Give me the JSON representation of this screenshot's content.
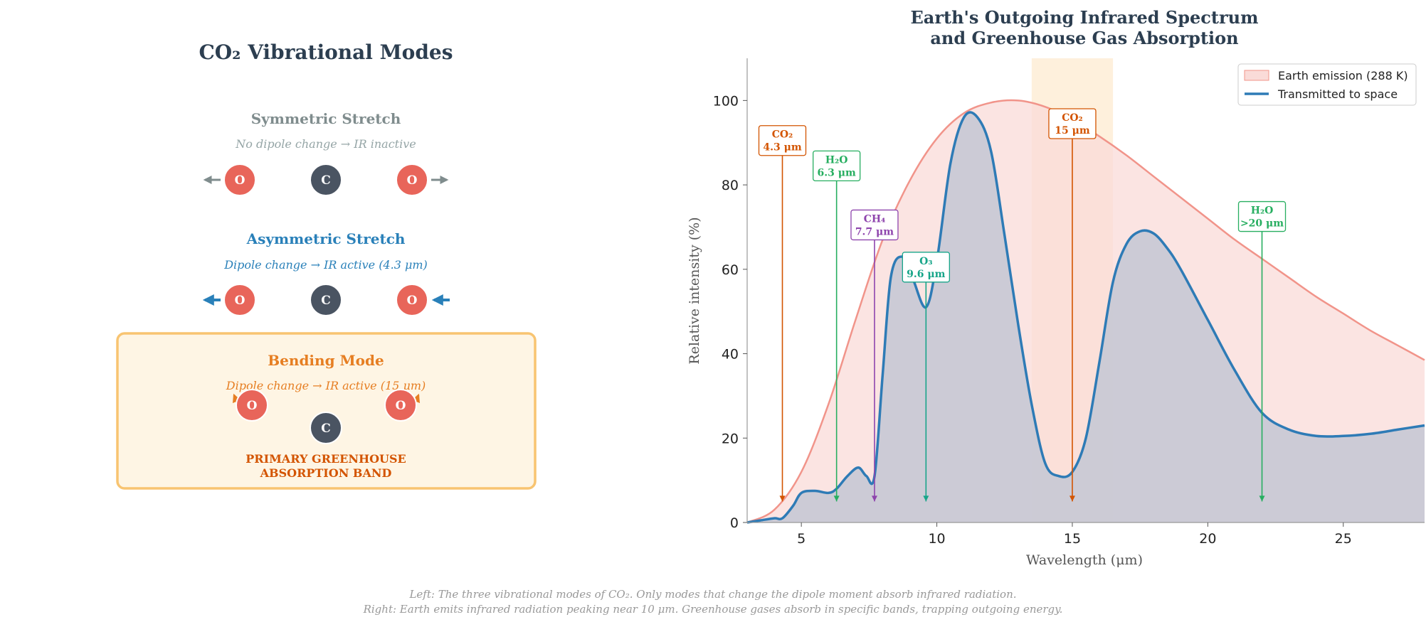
{
  "left_panel": {
    "title": "CO₂ Vibrational Modes",
    "modes": [
      {
        "name": "Symmetric Stretch",
        "desc": "No dipole change → IR inactive",
        "color": "#7f8c8d"
      },
      {
        "name": "Asymmetric Stretch",
        "desc": "Dipole change → IR active (4.3 μm)",
        "color": "#2980b9"
      },
      {
        "name": "Bending Mode",
        "desc": "Dipole change → IR active (15 μm)",
        "color": "#e67e22",
        "note_line1": "PRIMARY GREENHOUSE",
        "note_line2": "ABSORPTION BAND",
        "note_color": "#d35400",
        "box_fill": "#fef5e4",
        "box_stroke": "#f8c471"
      }
    ],
    "atoms": {
      "oxygen": "O",
      "carbon": "C",
      "oxygen_color": "#e8655a",
      "carbon_color": "#4a5462"
    }
  },
  "chart_data": {
    "type": "area",
    "title_line1": "Earth's Outgoing Infrared Spectrum",
    "title_line2": "and Greenhouse Gas Absorption",
    "xlabel": "Wavelength (μm)",
    "ylabel": "Relative intensity (%)",
    "xlim": [
      3,
      28
    ],
    "ylim": [
      0,
      110
    ],
    "xticks": [
      5,
      10,
      15,
      20,
      25
    ],
    "yticks": [
      0,
      20,
      40,
      60,
      80,
      100
    ],
    "legend_position": "top-right",
    "series": [
      {
        "name": "Earth emission (288 K)",
        "kind": "filled-area",
        "color": "#f1948a",
        "fill": "#fadbd8",
        "x": [
          3,
          4,
          5,
          6,
          7,
          8,
          9,
          10,
          11,
          12,
          13,
          14,
          15,
          16,
          17,
          18,
          19,
          20,
          21,
          22,
          23,
          24,
          25,
          26,
          27,
          28
        ],
        "y": [
          0,
          3,
          12,
          28,
          48,
          67,
          81,
          91,
          97,
          99.5,
          100,
          98.5,
          95.5,
          91.5,
          87,
          82,
          77,
          72,
          67,
          62.5,
          58,
          53.5,
          49.5,
          45.5,
          42,
          38.5
        ]
      },
      {
        "name": "Transmitted to space",
        "kind": "line",
        "color": "#2e7bb6",
        "fill": "#c3c7d4",
        "x": [
          3,
          3.5,
          4,
          4.3,
          4.7,
          5,
          5.5,
          6,
          6.3,
          6.7,
          7.1,
          7.4,
          7.7,
          8,
          8.3,
          8.7,
          9.1,
          9.6,
          10,
          10.5,
          11,
          11.5,
          12,
          12.5,
          13,
          13.5,
          14,
          14.5,
          15,
          15.5,
          16,
          16.5,
          17,
          17.5,
          18,
          18.5,
          19,
          20,
          21,
          22,
          23,
          24,
          25,
          26,
          27,
          28
        ],
        "y": [
          0,
          0.5,
          1,
          1,
          4,
          7,
          7.5,
          7,
          8,
          11,
          13,
          11,
          11,
          35,
          58,
          63,
          58,
          51,
          62,
          85,
          96,
          96,
          88,
          68,
          47,
          28,
          14,
          11,
          12,
          20,
          38,
          57,
          66,
          69,
          68.5,
          65,
          60,
          48,
          36,
          26,
          22,
          20.5,
          20.5,
          21,
          22,
          23
        ]
      }
    ],
    "highlight_band": {
      "x": [
        13.5,
        16.5
      ],
      "color": "#fdebd0"
    },
    "annotations": [
      {
        "line1": "CO₂",
        "line2": "4.3 μm",
        "x": 4.3,
        "label_y": 90,
        "color": "#d35400"
      },
      {
        "line1": "H₂O",
        "line2": "6.3 μm",
        "x": 6.3,
        "label_y": 84,
        "color": "#27ae60"
      },
      {
        "line1": "CH₄",
        "line2": "7.7 μm",
        "x": 7.7,
        "label_y": 70,
        "color": "#8e44ad"
      },
      {
        "line1": "O₃",
        "line2": "9.6 μm",
        "x": 9.6,
        "label_y": 60,
        "color": "#17a589"
      },
      {
        "line1": "CO₂",
        "line2": "15 μm",
        "x": 15,
        "label_y": 94,
        "color": "#d35400"
      },
      {
        "line1": "H₂O",
        "line2": ">20 μm",
        "x": 22,
        "label_y": 72,
        "color": "#27ae60"
      }
    ]
  },
  "caption": {
    "line1": "Left: The three vibrational modes of CO₂. Only modes that change the dipole moment absorb infrared radiation.",
    "line2": "Right: Earth emits infrared radiation peaking near 10 μm. Greenhouse gases absorb in specific bands, trapping outgoing energy."
  }
}
